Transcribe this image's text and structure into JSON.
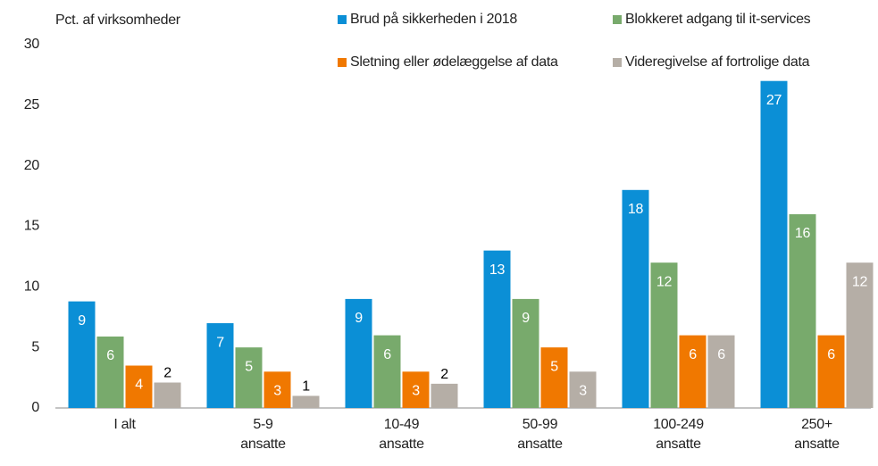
{
  "chart_data": {
    "type": "bar",
    "ylabel": "Pct. af virksomheder",
    "categories": [
      [
        "I alt"
      ],
      [
        "5-9",
        "ansatte"
      ],
      [
        "10-49",
        "ansatte"
      ],
      [
        "50-99",
        "ansatte"
      ],
      [
        "100-249",
        "ansatte"
      ],
      [
        "250+",
        "ansatte"
      ]
    ],
    "series": [
      {
        "name": "Brud på sikkerheden i 2018",
        "color": "#0b8fd6",
        "values": [
          8.8,
          7,
          9,
          13,
          18,
          27
        ],
        "value_labels": [
          "9",
          "7",
          "9",
          "13",
          "18",
          "27"
        ]
      },
      {
        "name": "Blokkeret adgang til it-services",
        "color": "#78aa6c",
        "values": [
          5.9,
          5,
          6,
          9,
          12,
          16
        ],
        "value_labels": [
          "6",
          "5",
          "6",
          "9",
          "12",
          "16"
        ]
      },
      {
        "name": "Sletning eller ødelæggelse af data",
        "color": "#f07800",
        "values": [
          3.5,
          3,
          3,
          5,
          6,
          6
        ],
        "value_labels": [
          "4",
          "3",
          "3",
          "5",
          "6",
          "6"
        ]
      },
      {
        "name": "Videregivelse af fortrolige data",
        "color": "#b5aea6",
        "values": [
          2.1,
          1,
          2,
          3,
          6,
          12
        ],
        "value_labels": [
          "2",
          "1",
          "2",
          "3",
          "6",
          "12"
        ]
      }
    ],
    "ylim": [
      0,
      30
    ],
    "yticks": [
      0,
      5,
      10,
      15,
      20,
      25,
      30
    ],
    "grid": false,
    "legend": "top-right"
  }
}
